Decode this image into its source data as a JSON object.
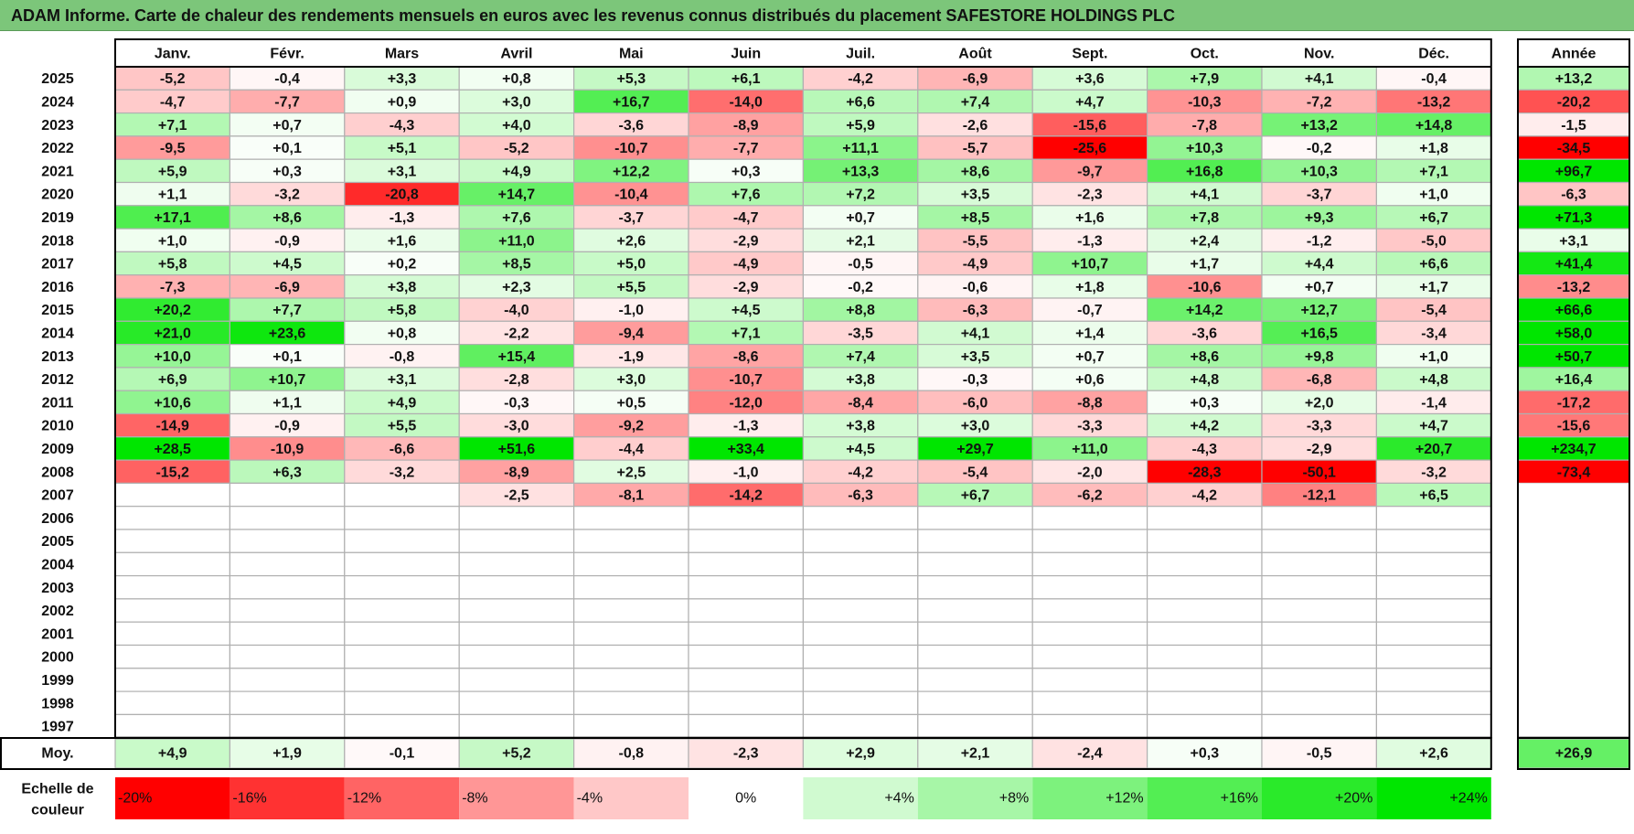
{
  "title": "ADAM Informe. Carte de chaleur des rendements mensuels en euros avec les revenus connus distribués du placement SAFESTORE HOLDINGS PLC",
  "colors": {
    "title_bg": "#7cc67a",
    "neg_max": "#ff0000",
    "pos_max": "#00e600",
    "neutral": "#ffffff",
    "grid": "#b0b0b0",
    "border": "#000000"
  },
  "chart_data": {
    "type": "heatmap",
    "title": "ADAM Informe. Carte de chaleur des rendements mensuels en euros avec les revenus connus distribués du placement SAFESTORE HOLDINGS PLC",
    "months": [
      "Janv.",
      "Févr.",
      "Mars",
      "Avril",
      "Mai",
      "Juin",
      "Juil.",
      "Août",
      "Sept.",
      "Oct.",
      "Nov.",
      "Déc."
    ],
    "year_header": "Année",
    "avg_label": "Moy.",
    "years": [
      "2025",
      "2024",
      "2023",
      "2022",
      "2021",
      "2020",
      "2019",
      "2018",
      "2017",
      "2016",
      "2015",
      "2014",
      "2013",
      "2012",
      "2011",
      "2010",
      "2009",
      "2008",
      "2007",
      "2006",
      "2005",
      "2004",
      "2003",
      "2002",
      "2001",
      "2000",
      "1999",
      "1998",
      "1997"
    ],
    "values": [
      [
        -5.2,
        -0.4,
        3.3,
        0.8,
        5.3,
        6.1,
        -4.2,
        -6.9,
        3.6,
        7.9,
        4.1,
        -0.4
      ],
      [
        -4.7,
        -7.7,
        0.9,
        3.0,
        16.7,
        -14.0,
        6.6,
        7.4,
        4.7,
        -10.3,
        -7.2,
        -13.2
      ],
      [
        7.1,
        0.7,
        -4.3,
        4.0,
        -3.6,
        -8.9,
        5.9,
        -2.6,
        -15.6,
        -7.8,
        13.2,
        14.8
      ],
      [
        -9.5,
        0.1,
        5.1,
        -5.2,
        -10.7,
        -7.7,
        11.1,
        -5.7,
        -25.6,
        10.3,
        -0.2,
        1.8
      ],
      [
        5.9,
        0.3,
        3.1,
        4.9,
        12.2,
        0.3,
        13.3,
        8.6,
        -9.7,
        16.8,
        10.3,
        7.1
      ],
      [
        1.1,
        -3.2,
        -20.8,
        14.7,
        -10.4,
        7.6,
        7.2,
        3.5,
        -2.3,
        4.1,
        -3.7,
        1.0
      ],
      [
        17.1,
        8.6,
        -1.3,
        7.6,
        -3.7,
        -4.7,
        0.7,
        8.5,
        1.6,
        7.8,
        9.3,
        6.7
      ],
      [
        1.0,
        -0.9,
        1.6,
        11.0,
        2.6,
        -2.9,
        2.1,
        -5.5,
        -1.3,
        2.4,
        -1.2,
        -5.0
      ],
      [
        5.8,
        4.5,
        0.2,
        8.5,
        5.0,
        -4.9,
        -0.5,
        -4.9,
        10.7,
        1.7,
        4.4,
        6.6
      ],
      [
        -7.3,
        -6.9,
        3.8,
        2.3,
        5.5,
        -2.9,
        -0.2,
        -0.6,
        1.8,
        -10.6,
        0.7,
        1.7
      ],
      [
        20.2,
        7.7,
        5.8,
        -4.0,
        -1.0,
        4.5,
        8.8,
        -6.3,
        -0.7,
        14.2,
        12.7,
        -5.4
      ],
      [
        21.0,
        23.6,
        0.8,
        -2.2,
        -9.4,
        7.1,
        -3.5,
        4.1,
        1.4,
        -3.6,
        16.5,
        -3.4
      ],
      [
        10.0,
        0.1,
        -0.8,
        15.4,
        -1.9,
        -8.6,
        7.4,
        3.5,
        0.7,
        8.6,
        9.8,
        1.0
      ],
      [
        6.9,
        10.7,
        3.1,
        -2.8,
        3.0,
        -10.7,
        3.8,
        -0.3,
        0.6,
        4.8,
        -6.8,
        4.8
      ],
      [
        10.6,
        1.1,
        4.9,
        -0.3,
        0.5,
        -12.0,
        -8.4,
        -6.0,
        -8.8,
        0.3,
        2.0,
        -1.4
      ],
      [
        -14.9,
        -0.9,
        5.5,
        -3.0,
        -9.2,
        -1.3,
        3.8,
        3.0,
        -3.3,
        4.2,
        -3.3,
        4.7
      ],
      [
        28.5,
        -10.9,
        -6.6,
        51.6,
        -4.4,
        33.4,
        4.5,
        29.7,
        11.0,
        -4.3,
        -2.9,
        20.7
      ],
      [
        -15.2,
        6.3,
        -3.2,
        -8.9,
        2.5,
        -1.0,
        -4.2,
        -5.4,
        -2.0,
        -28.3,
        -50.1,
        -3.2
      ],
      [
        null,
        null,
        null,
        -2.5,
        -8.1,
        -14.2,
        -6.3,
        6.7,
        -6.2,
        -4.2,
        -12.1,
        6.5
      ],
      [
        null,
        null,
        null,
        null,
        null,
        null,
        null,
        null,
        null,
        null,
        null,
        null
      ],
      [
        null,
        null,
        null,
        null,
        null,
        null,
        null,
        null,
        null,
        null,
        null,
        null
      ],
      [
        null,
        null,
        null,
        null,
        null,
        null,
        null,
        null,
        null,
        null,
        null,
        null
      ],
      [
        null,
        null,
        null,
        null,
        null,
        null,
        null,
        null,
        null,
        null,
        null,
        null
      ],
      [
        null,
        null,
        null,
        null,
        null,
        null,
        null,
        null,
        null,
        null,
        null,
        null
      ],
      [
        null,
        null,
        null,
        null,
        null,
        null,
        null,
        null,
        null,
        null,
        null,
        null
      ],
      [
        null,
        null,
        null,
        null,
        null,
        null,
        null,
        null,
        null,
        null,
        null,
        null
      ],
      [
        null,
        null,
        null,
        null,
        null,
        null,
        null,
        null,
        null,
        null,
        null,
        null
      ],
      [
        null,
        null,
        null,
        null,
        null,
        null,
        null,
        null,
        null,
        null,
        null,
        null
      ],
      [
        null,
        null,
        null,
        null,
        null,
        null,
        null,
        null,
        null,
        null,
        null,
        null
      ]
    ],
    "annual": [
      13.2,
      -20.2,
      -1.5,
      -34.5,
      96.7,
      -6.3,
      71.3,
      3.1,
      41.4,
      -13.2,
      66.6,
      58.0,
      50.7,
      16.4,
      -17.2,
      -15.6,
      234.7,
      -73.4,
      null,
      null,
      null,
      null,
      null,
      null,
      null,
      null,
      null,
      null,
      null
    ],
    "monthly_avg": [
      4.9,
      1.9,
      -0.1,
      5.2,
      -0.8,
      -2.3,
      2.9,
      2.1,
      -2.4,
      0.3,
      -0.5,
      2.6
    ],
    "annual_avg": 26.9,
    "color_scale": {
      "label": "Echelle de couleur",
      "stops": [
        -20,
        -16,
        -12,
        -8,
        -4,
        0,
        4,
        8,
        12,
        16,
        20,
        24
      ],
      "labels": [
        "-20%",
        "-16%",
        "-12%",
        "-8%",
        "-4%",
        "0%",
        "+4%",
        "+8%",
        "+12%",
        "+16%",
        "+20%",
        "+24%"
      ]
    }
  }
}
